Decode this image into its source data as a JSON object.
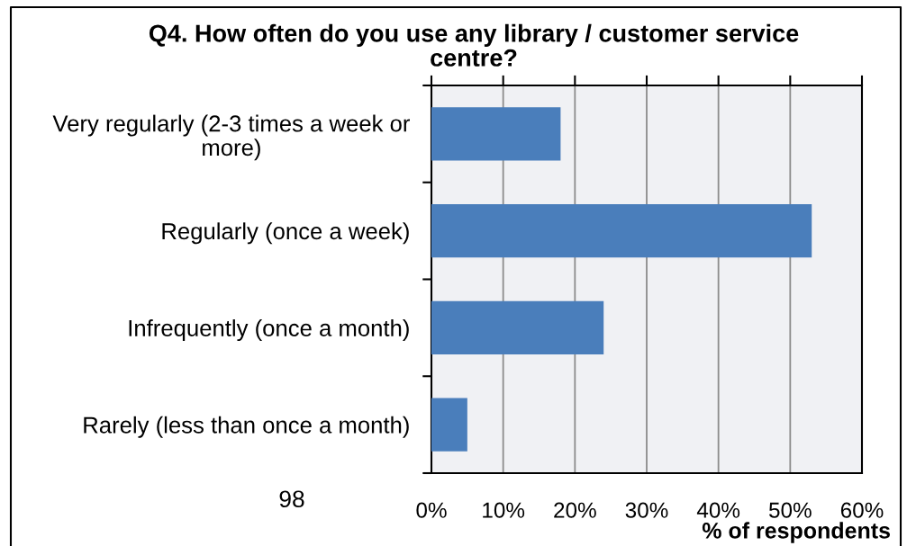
{
  "chart_data": {
    "type": "bar",
    "orientation": "horizontal",
    "title": "Q4. How often do you use any library / customer service centre?",
    "xlabel": "% of respondents",
    "categories": [
      "Very regularly (2-3 times a week or more)",
      "Regularly (once a week)",
      "Infrequently (once a month)",
      "Rarely (less than once a month)"
    ],
    "values": [
      18,
      53,
      24,
      5
    ],
    "color": "#4a7ebb",
    "xlim": [
      0,
      60
    ],
    "xticks": [
      {
        "value": 0,
        "label": "0%"
      },
      {
        "value": 10,
        "label": "10%"
      },
      {
        "value": 20,
        "label": "20%"
      },
      {
        "value": 30,
        "label": "30%"
      },
      {
        "value": 40,
        "label": "40%"
      },
      {
        "value": 50,
        "label": "50%"
      },
      {
        "value": 60,
        "label": "60%"
      }
    ],
    "grid": "x",
    "annotations": [
      "98"
    ]
  }
}
